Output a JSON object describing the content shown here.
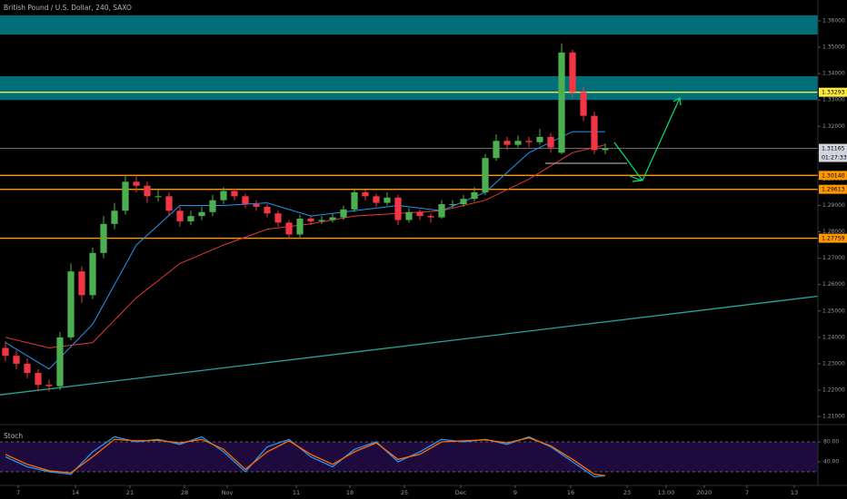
{
  "chart_data": {
    "type": "candlestick",
    "title": "British Pound / U.S. Dollar, 240, SAXO",
    "up_color": "#4caf50",
    "down_color": "#f23645",
    "x": [
      0,
      1,
      2,
      3,
      4,
      5,
      6,
      7,
      8,
      9,
      10,
      11,
      12,
      13,
      14,
      15,
      16,
      17,
      18,
      19,
      20,
      21,
      22,
      23,
      24,
      25,
      26,
      27,
      28,
      29,
      30,
      31,
      32,
      33,
      34,
      35,
      36,
      37,
      38,
      39,
      40,
      41,
      42,
      43,
      44,
      45,
      46,
      47,
      48,
      49,
      50,
      51,
      52,
      53,
      54,
      55
    ],
    "open": [
      1.236,
      1.233,
      1.23,
      1.2265,
      1.222,
      1.2215,
      1.24,
      1.265,
      1.256,
      1.272,
      1.283,
      1.288,
      1.299,
      1.2975,
      1.2935,
      1.2935,
      1.288,
      1.284,
      1.286,
      1.2875,
      1.292,
      1.2955,
      1.2935,
      1.2905,
      1.2895,
      1.287,
      1.2835,
      1.279,
      1.285,
      1.284,
      1.2845,
      1.2855,
      1.2885,
      1.295,
      1.2935,
      1.291,
      1.293,
      1.2845,
      1.2875,
      1.286,
      1.2855,
      1.2905,
      1.2905,
      1.2925,
      1.295,
      1.308,
      1.3145,
      1.313,
      1.3145,
      1.314,
      1.316,
      1.31,
      1.348,
      1.333,
      1.324,
      1.311
    ],
    "high": [
      1.2385,
      1.235,
      1.232,
      1.228,
      1.224,
      1.242,
      1.268,
      1.267,
      1.274,
      1.286,
      1.291,
      1.3015,
      1.301,
      1.299,
      1.296,
      1.295,
      1.2895,
      1.288,
      1.2895,
      1.294,
      1.297,
      1.2965,
      1.2945,
      1.292,
      1.2905,
      1.288,
      1.2845,
      1.2865,
      1.286,
      1.286,
      1.287,
      1.29,
      1.2965,
      1.296,
      1.2945,
      1.295,
      1.294,
      1.289,
      1.2885,
      1.287,
      1.292,
      1.292,
      1.294,
      1.297,
      1.3095,
      1.317,
      1.316,
      1.3165,
      1.316,
      1.319,
      1.3175,
      1.3515,
      1.349,
      1.335,
      1.3255,
      1.3135
    ],
    "low": [
      1.231,
      1.228,
      1.2245,
      1.2195,
      1.2195,
      1.22,
      1.239,
      1.253,
      1.2545,
      1.27,
      1.281,
      1.2865,
      1.295,
      1.291,
      1.2915,
      1.286,
      1.282,
      1.2825,
      1.2845,
      1.286,
      1.2905,
      1.292,
      1.289,
      1.288,
      1.2855,
      1.282,
      1.2775,
      1.278,
      1.2825,
      1.283,
      1.2835,
      1.2845,
      1.2875,
      1.292,
      1.2895,
      1.29,
      1.2825,
      1.2835,
      1.2845,
      1.2835,
      1.285,
      1.289,
      1.2895,
      1.2915,
      1.294,
      1.307,
      1.311,
      1.312,
      1.312,
      1.313,
      1.31,
      1.3095,
      1.331,
      1.322,
      1.3095,
      1.3095
    ],
    "close": [
      1.233,
      1.23,
      1.2265,
      1.222,
      1.2215,
      1.24,
      1.265,
      1.256,
      1.272,
      1.283,
      1.288,
      1.299,
      1.2975,
      1.2935,
      1.2935,
      1.288,
      1.284,
      1.286,
      1.2875,
      1.292,
      1.2955,
      1.2935,
      1.2905,
      1.2895,
      1.287,
      1.2835,
      1.279,
      1.285,
      1.284,
      1.2845,
      1.2855,
      1.2885,
      1.295,
      1.2935,
      1.291,
      1.293,
      1.2845,
      1.2875,
      1.286,
      1.2855,
      1.2905,
      1.2905,
      1.2925,
      1.295,
      1.308,
      1.3145,
      1.313,
      1.3145,
      1.314,
      1.316,
      1.312,
      1.348,
      1.333,
      1.324,
      1.311,
      1.3117
    ],
    "ma": [
      {
        "color": "#2196f3",
        "x": [
          0,
          4,
          8,
          12,
          16,
          20,
          24,
          28,
          32,
          36,
          40,
          44,
          48,
          52,
          55
        ],
        "values": [
          1.238,
          1.228,
          1.245,
          1.275,
          1.29,
          1.29,
          1.291,
          1.286,
          1.288,
          1.29,
          1.288,
          1.295,
          1.31,
          1.318,
          1.318
        ]
      },
      {
        "color": "#e53935",
        "x": [
          0,
          4,
          8,
          12,
          16,
          20,
          24,
          28,
          32,
          36,
          40,
          44,
          48,
          52,
          55
        ],
        "values": [
          1.24,
          1.236,
          1.238,
          1.255,
          1.268,
          1.275,
          1.281,
          1.283,
          1.286,
          1.287,
          1.288,
          1.292,
          1.3,
          1.31,
          1.313
        ]
      }
    ],
    "trendline": {
      "color": "#26a69a",
      "x": [
        -0.5,
        74.5
      ],
      "values": [
        1.2182,
        1.2556
      ]
    },
    "zones": [
      {
        "from": 1.3548,
        "to": 1.3621,
        "color": "#00838f"
      },
      {
        "from": 1.33,
        "to": 1.339,
        "color": "#00838f"
      }
    ],
    "levels": [
      {
        "value": 1.33293,
        "label": "1.33293",
        "color": "#ffeb3b"
      },
      {
        "value": 1.3014,
        "label": "1.30140",
        "color": "#ff9800"
      },
      {
        "value": 1.29613,
        "label": "1.29613",
        "color": "#ff9800"
      },
      {
        "value": 1.27759,
        "label": "1.27759",
        "color": "#ff9800"
      }
    ],
    "last_price": {
      "value": 1.31165,
      "label": "1.31165",
      "countdown": "01:27:33"
    },
    "xlim": [
      -0.5,
      74.5
    ],
    "ylim": [
      1.20795,
      1.36791
    ],
    "yticks": [
      {
        "value": 1.21,
        "label": "1.21000"
      },
      {
        "value": 1.22,
        "label": "1.22000"
      },
      {
        "value": 1.23,
        "label": "1.23000"
      },
      {
        "value": 1.24,
        "label": "1.24000"
      },
      {
        "value": 1.25,
        "label": "1.25000"
      },
      {
        "value": 1.26,
        "label": "1.26000"
      },
      {
        "value": 1.27,
        "label": "1.27000"
      },
      {
        "value": 1.28,
        "label": "1.28000"
      },
      {
        "value": 1.29,
        "label": "1.29000"
      },
      {
        "value": 1.3,
        "label": "1.30000"
      },
      {
        "value": 1.31,
        "label": "1.31000"
      },
      {
        "value": 1.32,
        "label": "1.32000"
      },
      {
        "value": 1.33,
        "label": "1.33000"
      },
      {
        "value": 1.34,
        "label": "1.34000"
      },
      {
        "value": 1.35,
        "label": "1.35000"
      },
      {
        "value": 1.36,
        "label": "1.36000"
      }
    ],
    "xticks": [
      {
        "value": 1.17,
        "label": "7"
      },
      {
        "value": 6.42,
        "label": "14"
      },
      {
        "value": 11.42,
        "label": "21"
      },
      {
        "value": 16.42,
        "label": "28"
      },
      {
        "value": 20.33,
        "label": "Nov"
      },
      {
        "value": 26.67,
        "label": "11"
      },
      {
        "value": 31.58,
        "label": "18"
      },
      {
        "value": 36.58,
        "label": "25"
      },
      {
        "value": 41.75,
        "label": "Dec"
      },
      {
        "value": 46.75,
        "label": "9"
      },
      {
        "value": 51.83,
        "label": "16"
      },
      {
        "value": 57.0,
        "label": "23"
      },
      {
        "value": 60.58,
        "label": "13:00"
      },
      {
        "value": 64.08,
        "label": "2020"
      },
      {
        "value": 68.0,
        "label": "7"
      },
      {
        "value": 72.33,
        "label": "13"
      }
    ],
    "stoch": {
      "title": "Stoch",
      "ylim": [
        -9.1,
        107.3
      ],
      "yticks": [
        {
          "value": 80,
          "label": "80.00"
        },
        {
          "value": 40,
          "label": "40.00"
        }
      ],
      "bands": [
        20,
        80
      ],
      "series": [
        {
          "color": "#2196f3",
          "x": [
            0,
            2,
            4,
            6,
            8,
            10,
            12,
            14,
            16,
            18,
            20,
            22,
            24,
            26,
            28,
            30,
            32,
            34,
            36,
            38,
            40,
            42,
            44,
            46,
            48,
            50,
            52,
            54,
            55
          ],
          "values": [
            50,
            30,
            20,
            15,
            60,
            90,
            80,
            85,
            75,
            90,
            60,
            20,
            70,
            85,
            50,
            30,
            65,
            80,
            40,
            60,
            85,
            80,
            85,
            75,
            90,
            70,
            40,
            10,
            12
          ]
        },
        {
          "color": "#ff6d00",
          "x": [
            0,
            2,
            4,
            6,
            8,
            10,
            12,
            14,
            16,
            18,
            20,
            22,
            24,
            26,
            28,
            30,
            32,
            34,
            36,
            38,
            40,
            42,
            44,
            46,
            48,
            50,
            52,
            54,
            55
          ],
          "values": [
            55,
            35,
            22,
            18,
            50,
            85,
            82,
            83,
            78,
            85,
            65,
            25,
            60,
            82,
            55,
            35,
            60,
            78,
            45,
            55,
            80,
            82,
            84,
            78,
            88,
            72,
            45,
            15,
            12
          ]
        }
      ]
    }
  }
}
